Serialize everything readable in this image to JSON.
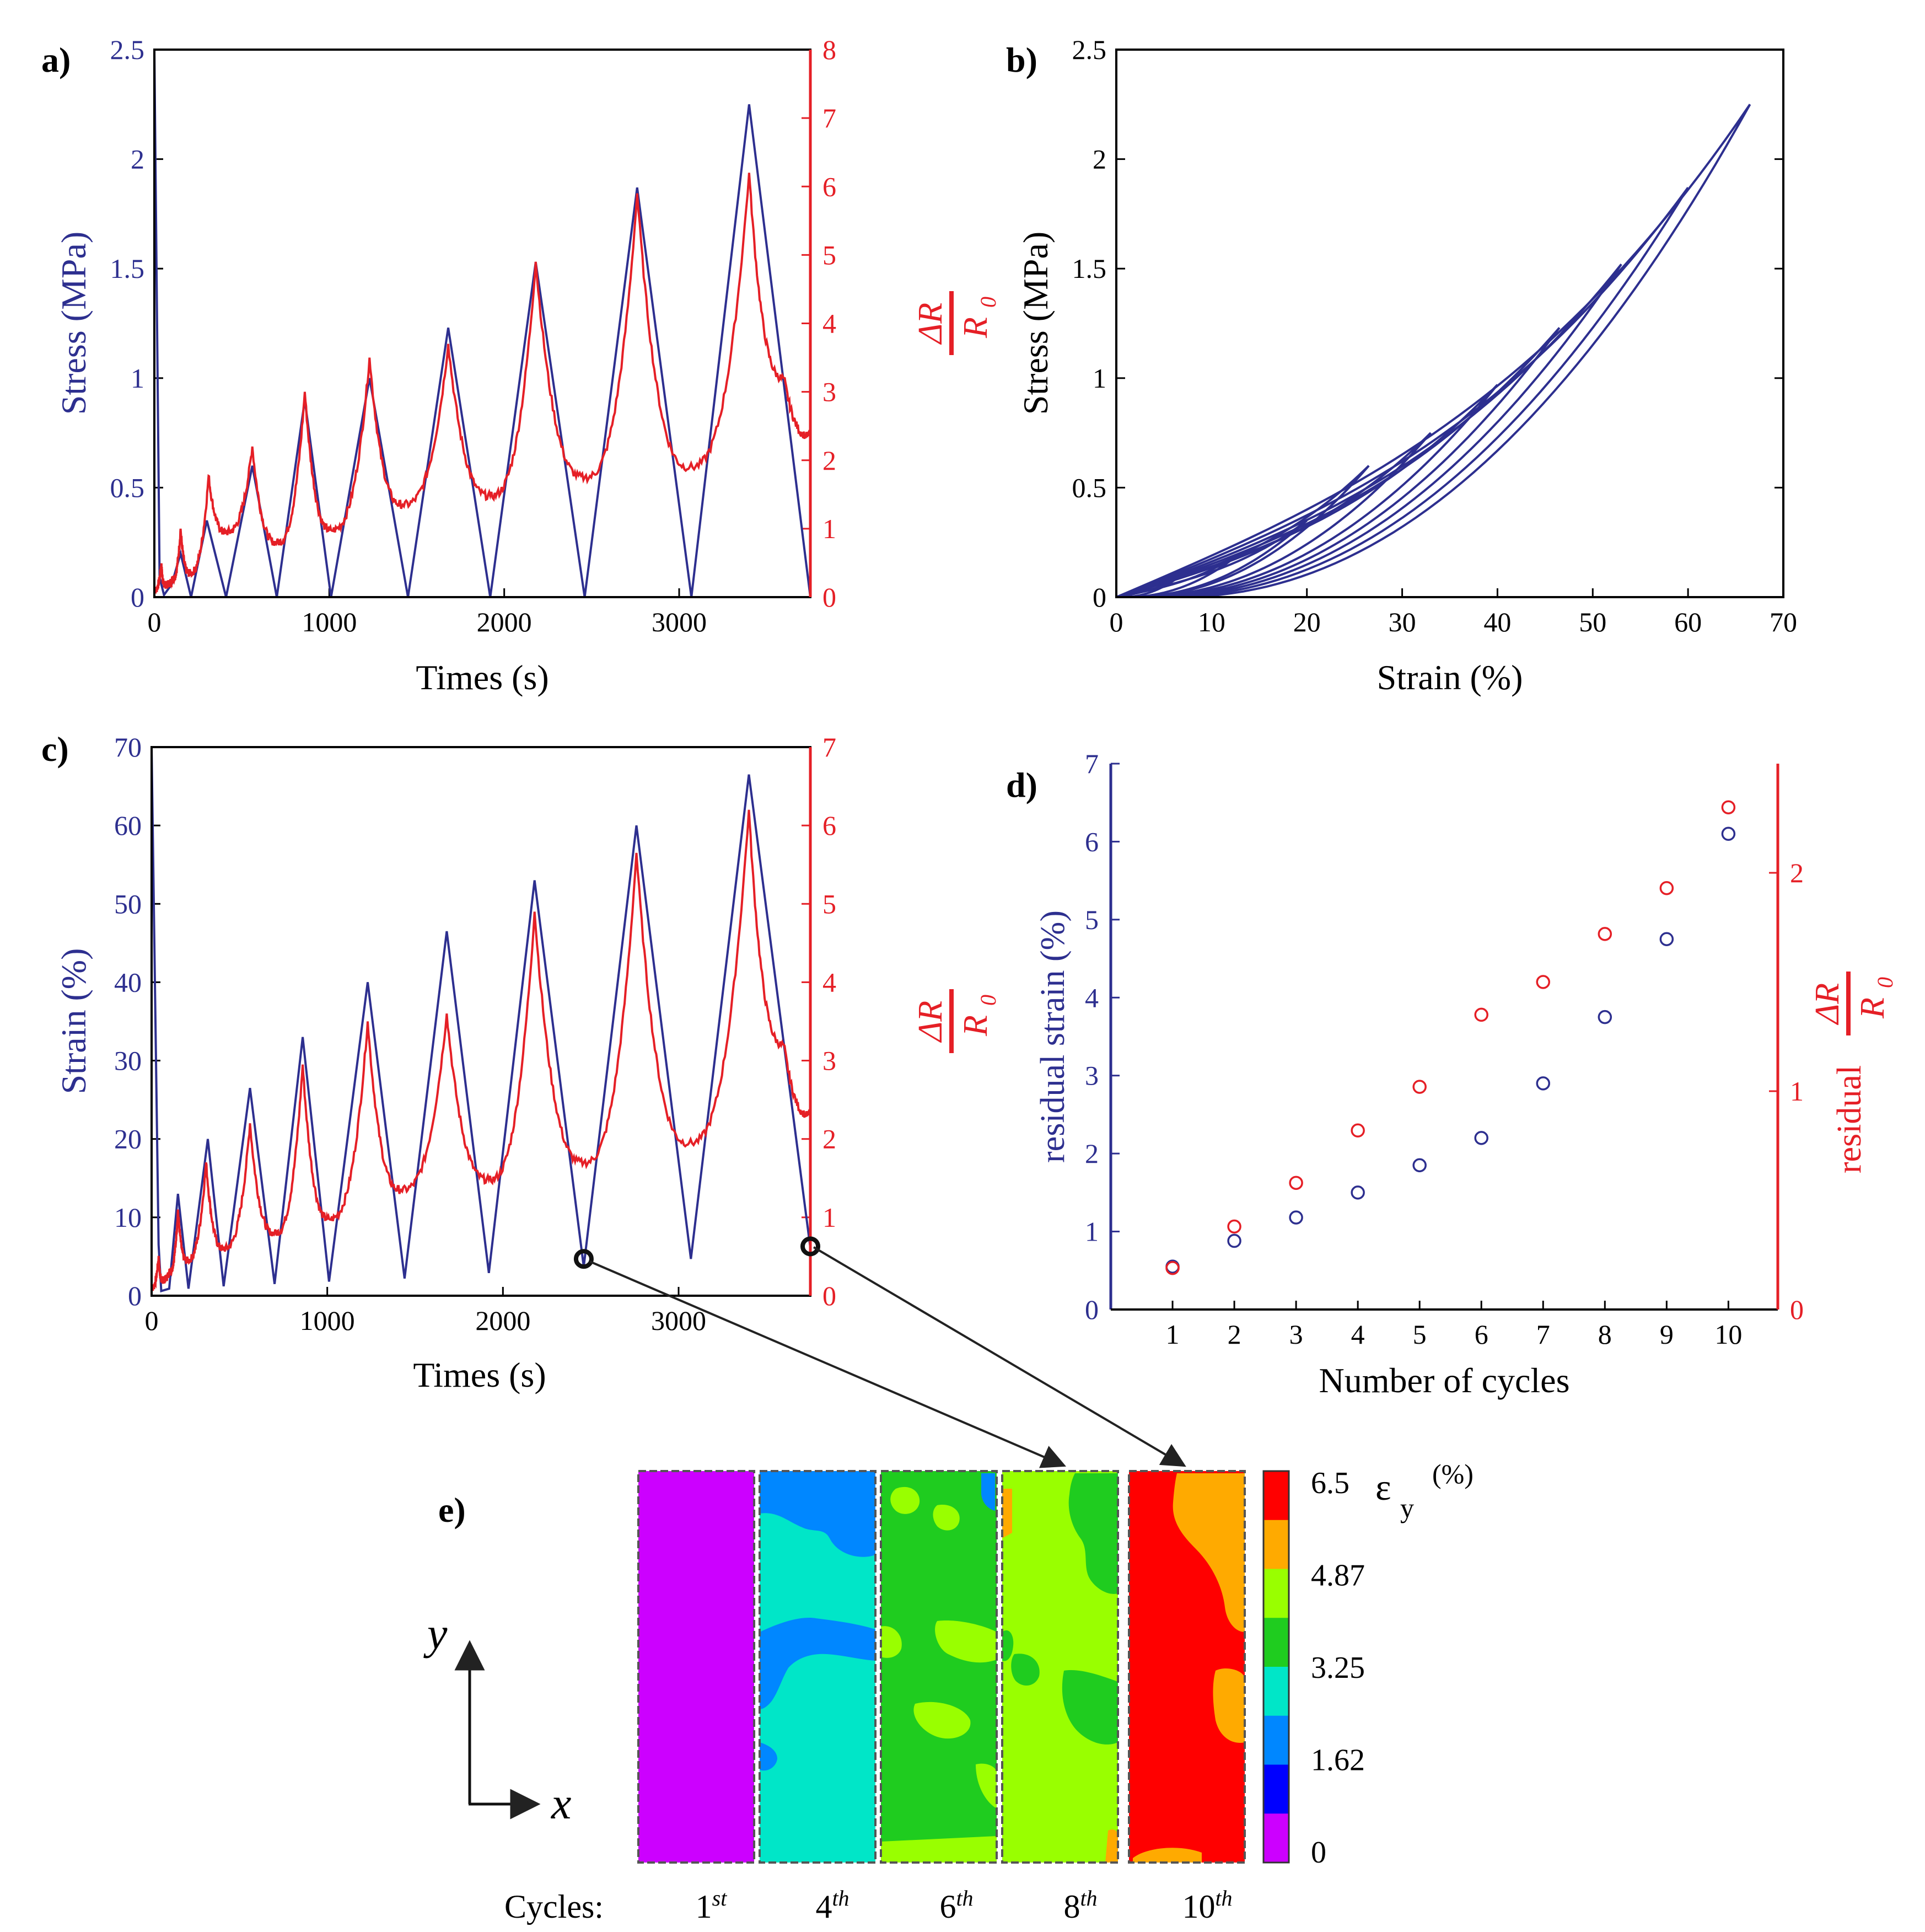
{
  "colors": {
    "blue": "#2d2f8f",
    "red": "#e51f26",
    "black": "#000000"
  },
  "chart_data": [
    {
      "id": "a",
      "type": "line",
      "panel_label": "a)",
      "xlabel": "Times (s)",
      "ylabel": "Stress (MPa)",
      "y2label_num": "ΔR",
      "y2label_den": "R",
      "y2label_sub": "0",
      "xlim": [
        0,
        3750
      ],
      "ylim": [
        0,
        2.5
      ],
      "y2lim": [
        0,
        8
      ],
      "xticks": [
        0,
        1000,
        2000,
        3000
      ],
      "yticks": [
        0,
        0.5,
        1,
        1.5,
        2,
        2.5
      ],
      "y2ticks": [
        0,
        1,
        2,
        3,
        4,
        5,
        6,
        7,
        8
      ],
      "series": [
        {
          "name": "Stress",
          "axis": "left",
          "color": "#2d2f8f",
          "x": [
            0,
            30,
            55,
            100,
            150,
            210,
            300,
            410,
            560,
            700,
            860,
            1010,
            1230,
            1450,
            1680,
            1920,
            2180,
            2460,
            2760,
            3070,
            3400,
            3750
          ],
          "y": [
            2.5,
            0.09,
            0.01,
            0.06,
            0.2,
            0.0,
            0.35,
            0.0,
            0.6,
            0.0,
            0.9,
            0.0,
            1.0,
            0.0,
            1.23,
            0.0,
            1.53,
            0.0,
            1.87,
            0.0,
            2.25,
            0.0
          ]
        },
        {
          "name": "ΔR/R0",
          "axis": "right",
          "color": "#e51f26",
          "x": [
            0,
            40,
            60,
            100,
            150,
            200,
            310,
            410,
            560,
            700,
            860,
            1010,
            1230,
            1420,
            1680,
            1920,
            2180,
            2460,
            2760,
            3060,
            3400,
            3600,
            3750
          ],
          "y": [
            0.1,
            0.48,
            0.18,
            0.25,
            1.0,
            0.35,
            1.77,
            0.95,
            2.2,
            0.8,
            3.0,
            0.98,
            3.5,
            1.35,
            3.7,
            1.48,
            4.9,
            1.75,
            5.9,
            1.9,
            6.2,
            3.2,
            2.35
          ]
        }
      ]
    },
    {
      "id": "b",
      "type": "line",
      "panel_label": "b)",
      "xlabel": "Strain (%)",
      "ylabel": "Stress (MPa)",
      "xlim": [
        0,
        70
      ],
      "ylim": [
        0,
        2.5
      ],
      "xticks": [
        0,
        10,
        20,
        30,
        40,
        50,
        60,
        70
      ],
      "yticks": [
        0,
        0.5,
        1,
        1.5,
        2,
        2.5
      ],
      "series": [
        {
          "name": "Cycle loops (peak strain, peak stress, residual strain)",
          "color": "#2d2f8f",
          "peaks": [
            [
              6.5,
              0.09,
              0.5
            ],
            [
              13,
              0.2,
              0.9
            ],
            [
              20,
              0.35,
              1.2
            ],
            [
              26.5,
              0.6,
              1.5
            ],
            [
              33,
              0.75,
              1.8
            ],
            [
              40,
              0.97,
              2.2
            ],
            [
              46.5,
              1.23,
              2.9
            ],
            [
              53,
              1.52,
              3.7
            ],
            [
              60,
              1.87,
              4.7
            ],
            [
              66.5,
              2.25,
              6.1
            ]
          ]
        }
      ]
    },
    {
      "id": "c",
      "type": "line",
      "panel_label": "c)",
      "xlabel": "Times (s)",
      "ylabel": "Strain (%)",
      "y2label_num": "ΔR",
      "y2label_den": "R",
      "y2label_sub": "0",
      "xlim": [
        0,
        3750
      ],
      "ylim": [
        0,
        70
      ],
      "y2lim": [
        0,
        7
      ],
      "xticks": [
        0,
        1000,
        2000,
        3000
      ],
      "yticks": [
        0,
        10,
        20,
        30,
        40,
        50,
        60,
        70
      ],
      "y2ticks": [
        0,
        1,
        2,
        3,
        4,
        5,
        6,
        7
      ],
      "series": [
        {
          "name": "Strain",
          "axis": "left",
          "color": "#2d2f8f",
          "x": [
            0,
            40,
            55,
            100,
            150,
            210,
            320,
            410,
            560,
            700,
            860,
            1010,
            1230,
            1440,
            1680,
            1920,
            2180,
            2460,
            2760,
            3070,
            3400,
            3750
          ],
          "y": [
            70,
            6.5,
            0.6,
            0.9,
            13,
            0.9,
            20,
            1.2,
            26.5,
            1.5,
            33,
            1.8,
            40,
            2.2,
            46.5,
            2.9,
            53,
            3.7,
            60,
            4.7,
            66.5,
            6.1
          ]
        },
        {
          "name": "ΔR/R0",
          "axis": "right",
          "color": "#e51f26",
          "x": [
            0,
            40,
            60,
            100,
            150,
            200,
            310,
            410,
            560,
            700,
            860,
            1010,
            1230,
            1420,
            1680,
            1920,
            2180,
            2460,
            2760,
            3060,
            3400,
            3600,
            3750
          ],
          "y": [
            0.1,
            0.5,
            0.2,
            0.3,
            1.1,
            0.45,
            1.7,
            0.6,
            2.2,
            0.8,
            2.95,
            0.98,
            3.5,
            1.35,
            3.6,
            1.48,
            4.9,
            1.7,
            5.65,
            1.95,
            6.2,
            3.2,
            2.3
          ]
        }
      ],
      "markers": [
        {
          "x": 2460,
          "y": 4.7
        },
        {
          "x": 3750,
          "y": 6.3
        }
      ]
    },
    {
      "id": "d",
      "type": "scatter",
      "panel_label": "d)",
      "xlabel": "Number of cycles",
      "ylabel": "residual strain (%)",
      "y2label_prefix": "residual",
      "y2label_num": "ΔR",
      "y2label_den": "R",
      "y2label_sub": "0",
      "xlim": [
        0,
        10.8
      ],
      "ylim": [
        0,
        7
      ],
      "y2lim": [
        0,
        2.5
      ],
      "xticks": [
        1,
        2,
        3,
        4,
        5,
        6,
        7,
        8,
        9,
        10
      ],
      "yticks": [
        0,
        1,
        2,
        3,
        4,
        5,
        6,
        7
      ],
      "y2ticks": [
        0,
        1,
        2
      ],
      "series": [
        {
          "name": "residual strain",
          "axis": "left",
          "color": "#2d2f8f",
          "x": [
            1,
            2,
            3,
            4,
            5,
            6,
            7,
            8,
            9,
            10
          ],
          "y": [
            0.55,
            0.88,
            1.18,
            1.5,
            1.85,
            2.2,
            2.9,
            3.75,
            4.75,
            6.1
          ]
        },
        {
          "name": "residual ΔR/R0",
          "axis": "right",
          "color": "#e51f26",
          "x": [
            1,
            2,
            3,
            4,
            5,
            6,
            7,
            8,
            9,
            10
          ],
          "y": [
            0.19,
            0.38,
            0.58,
            0.82,
            1.02,
            1.35,
            1.5,
            1.72,
            1.93,
            2.3
          ]
        }
      ]
    },
    {
      "id": "e",
      "type": "heatmap",
      "panel_label": "e)",
      "title": "ε",
      "title_sub": "y",
      "title_unit": "(%)",
      "colorbar_ticks": [
        "6.5",
        "4.87",
        "3.25",
        "1.62",
        "0"
      ],
      "colorbar_colors": [
        "#ff0000",
        "#ffaa00",
        "#99ff00",
        "#1fcc1f",
        "#00e6c8",
        "#0087ff",
        "#0000ff",
        "#cc00ff"
      ],
      "row_label": "Cycles:",
      "cycles": [
        {
          "num": "1",
          "sup": "st"
        },
        {
          "num": "4",
          "sup": "th"
        },
        {
          "num": "6",
          "sup": "th"
        },
        {
          "num": "8",
          "sup": "th"
        },
        {
          "num": "10",
          "sup": "th"
        }
      ],
      "axis_labels": {
        "y": "y",
        "x": "x"
      }
    }
  ]
}
